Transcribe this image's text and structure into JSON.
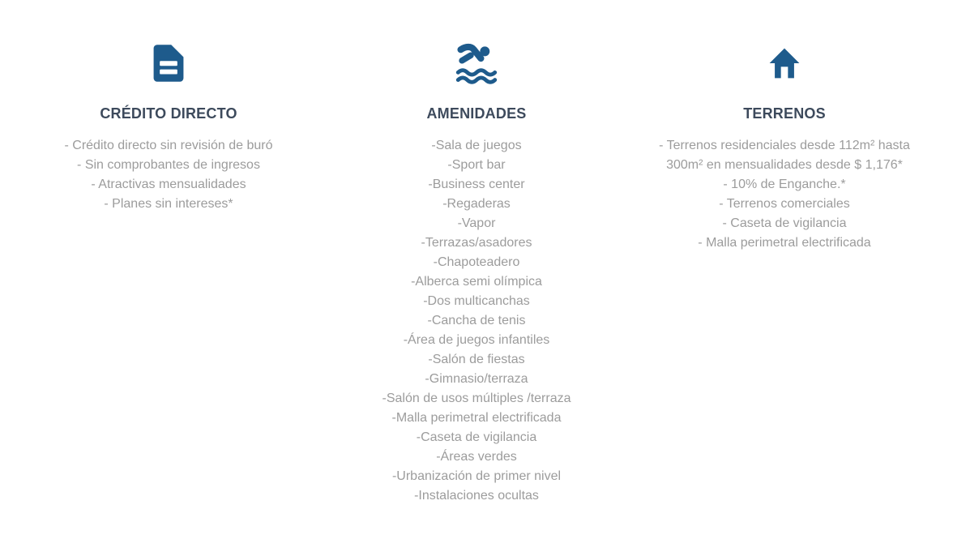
{
  "colors": {
    "icon_blue": "#1e5b8c",
    "title_text": "#3d4a5c",
    "body_text": "#9c9c9c",
    "background": "#ffffff"
  },
  "columns": [
    {
      "id": "credito-directo",
      "icon": "document-icon",
      "title": "CRÉDITO DIRECTO",
      "items": [
        "- Crédito directo sin revisión de buró",
        "- Sin comprobantes de ingresos",
        "- Atractivas mensualidades",
        "- Planes sin intereses*"
      ]
    },
    {
      "id": "amenidades",
      "icon": "swimmer-icon",
      "title": "AMENIDADES",
      "items": [
        "-Sala de juegos",
        "-Sport bar",
        "-Business center",
        "-Regaderas",
        "-Vapor",
        "-Terrazas/asadores",
        "-Chapoteadero",
        "-Alberca semi olímpica",
        "-Dos multicanchas",
        "-Cancha de tenis",
        "-Área de juegos infantiles",
        "-Salón de fiestas",
        "-Gimnasio/terraza",
        "-Salón de usos múltiples /terraza",
        "-Malla perimetral electrificada",
        "-Caseta de vigilancia",
        "-Áreas verdes",
        "-Urbanización de primer nivel",
        "-Instalaciones ocultas"
      ]
    },
    {
      "id": "terrenos",
      "icon": "home-icon",
      "title": "TERRENOS",
      "items": [
        "- Terrenos residenciales desde 112m² hasta 300m² en mensualidades desde $ 1,176*",
        "- 10% de Enganche.*",
        "- Terrenos comerciales",
        "- Caseta de vigilancia",
        "- Malla perimetral electrificada"
      ]
    }
  ]
}
